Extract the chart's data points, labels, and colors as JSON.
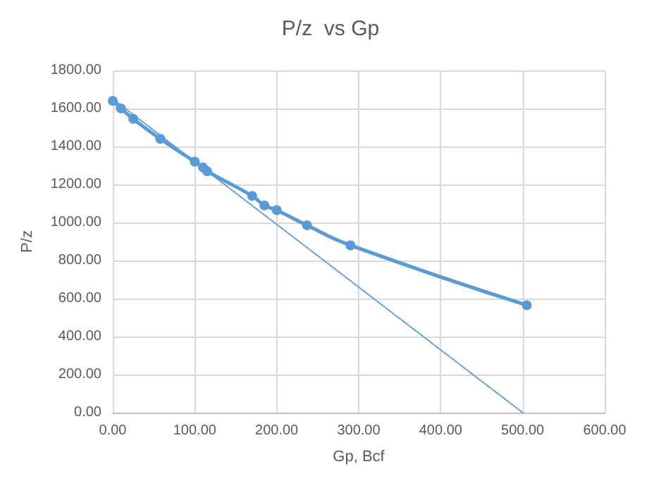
{
  "chart_data": {
    "type": "line",
    "title": "P/z  vs Gp",
    "xlabel": "Gp, Bcf",
    "ylabel": "P/z",
    "xlim": [
      0,
      600
    ],
    "xticks": [
      {
        "value": 0,
        "label": "0.00"
      },
      {
        "value": 100,
        "label": "100.00"
      },
      {
        "value": 200,
        "label": "200.00"
      },
      {
        "value": 300,
        "label": "300.00"
      },
      {
        "value": 400,
        "label": "400.00"
      },
      {
        "value": 500,
        "label": "500.00"
      },
      {
        "value": 600,
        "label": "600.00"
      }
    ],
    "ylim": [
      0,
      1800
    ],
    "yticks": [
      {
        "value": 0,
        "label": "0.00"
      },
      {
        "value": 200,
        "label": "200.00"
      },
      {
        "value": 400,
        "label": "400.00"
      },
      {
        "value": 600,
        "label": "600.00"
      },
      {
        "value": 800,
        "label": "800.00"
      },
      {
        "value": 1000,
        "label": "1000.00"
      },
      {
        "value": 1200,
        "label": "1200.00"
      },
      {
        "value": 1400,
        "label": "1400.00"
      },
      {
        "value": 1600,
        "label": "1600.00"
      },
      {
        "value": 1800,
        "label": "1800.00"
      }
    ],
    "grid": true,
    "series": [
      {
        "color": "#5b9bd5",
        "marker": "circle",
        "line_style": "solid",
        "x": [
          0,
          10,
          25,
          58,
          100,
          110,
          115,
          170,
          185,
          200,
          237,
          290,
          505
        ],
        "values": [
          1640,
          1600,
          1545,
          1440,
          1320,
          1290,
          1270,
          1140,
          1090,
          1065,
          985,
          880,
          565
        ]
      },
      {
        "color": "#5b9bd5",
        "marker": "none",
        "line_style": "dotted",
        "x": [
          0,
          500
        ],
        "values": [
          1650,
          0
        ]
      }
    ]
  }
}
